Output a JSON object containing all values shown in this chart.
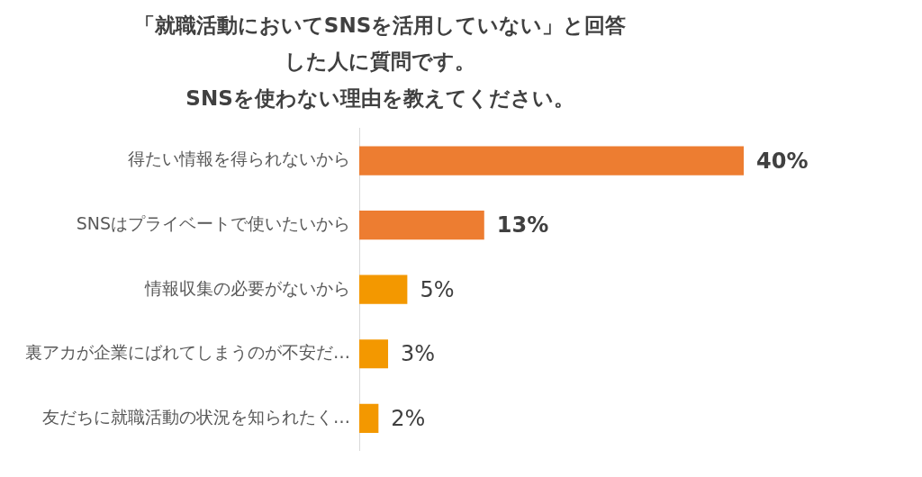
{
  "chart_data": {
    "type": "bar",
    "orientation": "horizontal",
    "title": "「就職活動においてSNSを活用していない」と回答した人に質問です。SNSを使わない理由を教えてください。",
    "categories": [
      "得たい情報を得られないから",
      "SNSはプライベートで使いたいから",
      "情報収集の必要がないから",
      "裏アカが企業にばれてしまうのが不安だ…",
      "友だちに就職活動の状況を知られたく…"
    ],
    "values": [
      40,
      13,
      5,
      3,
      2
    ],
    "colors": [
      "#ed7d31",
      "#ed7d31",
      "#f39800",
      "#f39800",
      "#f39800"
    ],
    "value_labels": [
      "40%",
      "13%",
      "5%",
      "3%",
      "2%"
    ],
    "tick_labels": "y",
    "grid": false,
    "legend": false
  }
}
